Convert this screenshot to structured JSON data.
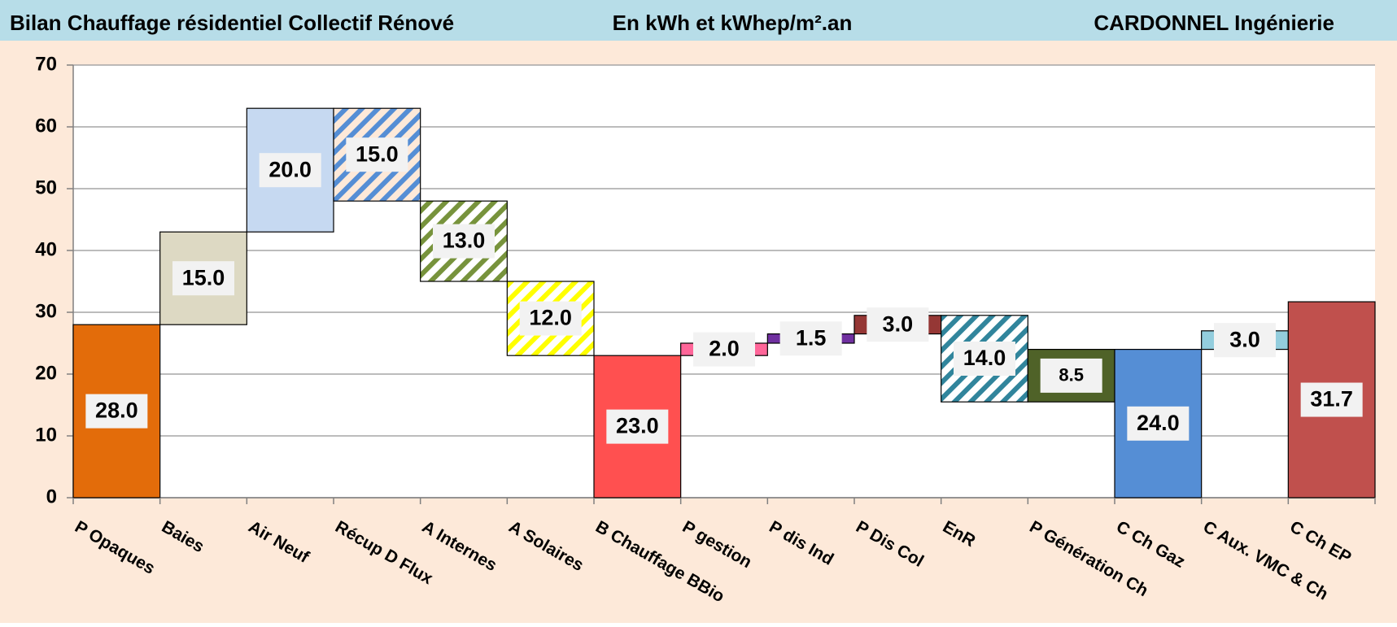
{
  "chart_data": {
    "type": "waterfall",
    "title": "Bilan Chauffage résidentiel Collectif Rénové",
    "subtitle": "En kWh et kWhep/m².an",
    "company": "CARDONNEL Ingénierie",
    "categories": [
      "P Opaques",
      "Baies",
      "Air Neuf",
      "Récup D Flux",
      "A Internes",
      "A Solaires",
      "B Chauffage BBio",
      "P gestion",
      "P dis Ind",
      "P Dis Col",
      "EnR",
      "P Génération Ch",
      "C Ch Gaz",
      "C Aux. VMC & Ch",
      "C Ch EP"
    ],
    "values": [
      28,
      15,
      20,
      15,
      13,
      12,
      23,
      2,
      1.5,
      3,
      14,
      8.5,
      24,
      3,
      31.7
    ],
    "value_labels": [
      "28.0",
      "15.0",
      "20.0",
      "15.0",
      "13.0",
      "12.0",
      "23.0",
      "2.0",
      "1.5",
      "3.0",
      "14.0",
      "8.5",
      "24.0",
      "3.0",
      "31.7"
    ],
    "kinds": [
      "total",
      "up",
      "up",
      "down",
      "down",
      "down",
      "total",
      "up",
      "up",
      "up",
      "down",
      "up",
      "total",
      "up",
      "total"
    ],
    "colors": [
      "#e36c0a",
      "#ddd9c3",
      "#c6d9f1",
      "#fde9d9",
      "#ffffff",
      "#ffffff",
      "#ff5050",
      "#ff6699",
      "#7030a0",
      "#953735",
      "#ffffff",
      "#4f6228",
      "#558ed5",
      "#93cddd",
      "#c0504d"
    ],
    "hatch": [
      null,
      null,
      null,
      "#558ed5",
      "#77933c",
      "#ffff00",
      null,
      null,
      null,
      null,
      "#31859c",
      null,
      null,
      null,
      null
    ],
    "ylim": [
      0,
      70
    ],
    "yticks": [
      0,
      10,
      20,
      30,
      40,
      50,
      60,
      70
    ],
    "grid": true
  }
}
